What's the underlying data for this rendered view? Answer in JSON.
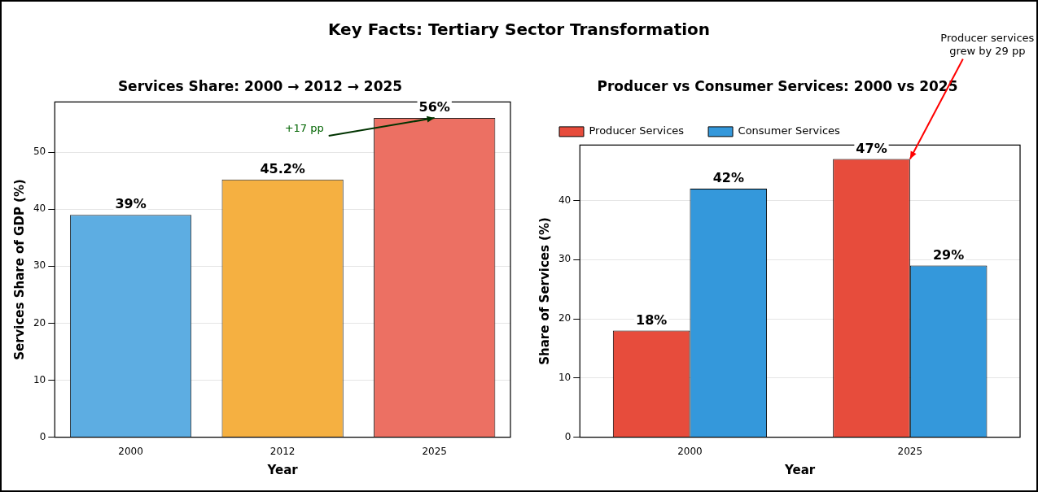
{
  "chart_data": [
    {
      "type": "other",
      "title": "Key Facts: Tertiary Sector Transformation"
    },
    {
      "type": "bar",
      "title": "Services Share: 2000 → 2012 → 2025",
      "xlabel": "Year",
      "ylabel": "Services Share of GDP (%)",
      "categories": [
        "2000",
        "2012",
        "2025"
      ],
      "values": [
        39,
        45.2,
        56
      ],
      "colors": [
        "#5dade2",
        "#f5b041",
        "#ec7063"
      ],
      "value_labels": [
        "39%",
        "45.2%",
        "56%"
      ],
      "ylim": [
        0,
        58.8
      ],
      "yticks": [
        0,
        10,
        20,
        30,
        40,
        50
      ],
      "grid": "y",
      "annotations": [
        {
          "text": "+17 pp",
          "x": "2025",
          "y": 56
        }
      ]
    },
    {
      "type": "bar",
      "title": "Producer vs Consumer Services: 2000 vs 2025",
      "xlabel": "Year",
      "ylabel": "Share of Services (%)",
      "categories": [
        "2000",
        "2025"
      ],
      "series": [
        {
          "name": "Producer Services",
          "color": "#e74c3c",
          "values": [
            18,
            47
          ],
          "value_labels": [
            "18%",
            "47%"
          ]
        },
        {
          "name": "Consumer Services",
          "color": "#3498db",
          "values": [
            42,
            29
          ],
          "value_labels": [
            "42%",
            "29%"
          ]
        }
      ],
      "ylim": [
        0,
        49.35
      ],
      "yticks": [
        0,
        10,
        20,
        30,
        40
      ],
      "grid": "y",
      "legend": "top left",
      "annotations": [
        {
          "text": "Producer services\ngrew by 29 pp",
          "x": "2025",
          "y": 47
        }
      ]
    }
  ]
}
